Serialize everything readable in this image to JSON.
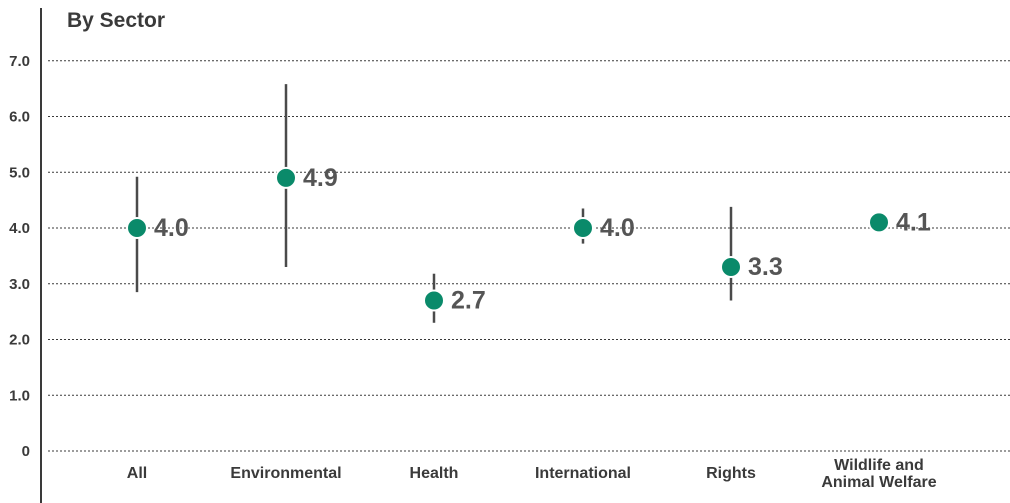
{
  "chart_data": {
    "type": "scatter",
    "title": "By Sector",
    "ylim": [
      0,
      7
    ],
    "yticks": [
      "0",
      "1.0",
      "2.0",
      "3.0",
      "4.0",
      "5.0",
      "6.0",
      "7.0"
    ],
    "grid": true,
    "categories": [
      [
        "All"
      ],
      [
        "Environmental"
      ],
      [
        "Health"
      ],
      [
        "International"
      ],
      [
        "Rights"
      ],
      [
        "Wildlife and",
        "Animal Welfare"
      ]
    ],
    "values": [
      4.0,
      4.9,
      2.7,
      4.0,
      3.3,
      4.1
    ],
    "value_labels": [
      "4.0",
      "4.9",
      "2.7",
      "4.0",
      "3.3",
      "4.1"
    ],
    "error_low": [
      2.85,
      3.3,
      2.3,
      3.72,
      2.7,
      4.05
    ],
    "error_high": [
      4.92,
      6.58,
      3.18,
      4.35,
      4.38,
      4.2
    ],
    "colors": {
      "marker": "#0a8a6a",
      "error_bar": "#4a4a4a",
      "text": "#3a3a3a",
      "value_label": "#555555"
    }
  }
}
